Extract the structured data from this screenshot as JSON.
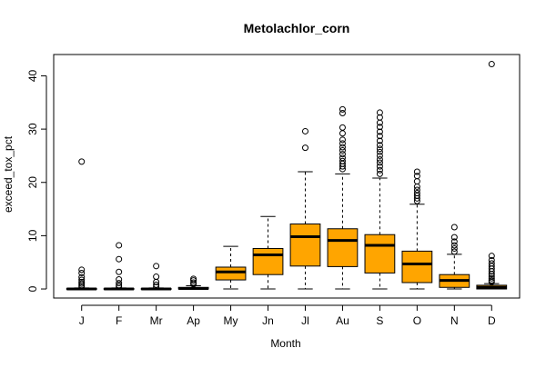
{
  "chart_data": {
    "type": "boxplot",
    "title": "Metolachlor_corn",
    "xlabel": "Month",
    "ylabel": "exceed_tox_pct",
    "ylim": [
      -1.7,
      44
    ],
    "yticks": [
      0,
      10,
      20,
      30,
      40
    ],
    "grid": false,
    "box_color": "#FFA500",
    "categories": [
      "J",
      "F",
      "Mr",
      "Ap",
      "My",
      "Jn",
      "Jl",
      "Au",
      "S",
      "O",
      "N",
      "D"
    ],
    "boxes": [
      {
        "month": "J",
        "lower_whisker": 0,
        "q1": 0,
        "median": 0,
        "q3": 0.1,
        "upper_whisker": 0.2,
        "outliers": [
          0.4,
          0.7,
          1.0,
          1.3,
          1.7,
          2.2,
          3.0,
          3.6,
          23.9
        ]
      },
      {
        "month": "F",
        "lower_whisker": 0,
        "q1": 0,
        "median": 0,
        "q3": 0.1,
        "upper_whisker": 0.2,
        "outliers": [
          0.4,
          0.7,
          1.1,
          1.8,
          3.2,
          5.6,
          8.2
        ]
      },
      {
        "month": "Mr",
        "lower_whisker": 0,
        "q1": 0,
        "median": 0,
        "q3": 0.1,
        "upper_whisker": 0.2,
        "outliers": [
          0.4,
          0.8,
          1.3,
          2.3,
          4.3
        ]
      },
      {
        "month": "Ap",
        "lower_whisker": 0,
        "q1": 0,
        "median": 0.1,
        "q3": 0.3,
        "upper_whisker": 0.6,
        "outliers": [
          0.9,
          1.2,
          1.6,
          1.9
        ]
      },
      {
        "month": "My",
        "lower_whisker": 0,
        "q1": 1.7,
        "median": 3.2,
        "q3": 4.1,
        "upper_whisker": 8.0,
        "outliers": []
      },
      {
        "month": "Jn",
        "lower_whisker": 0,
        "q1": 2.7,
        "median": 6.4,
        "q3": 7.6,
        "upper_whisker": 13.6,
        "outliers": []
      },
      {
        "month": "Jl",
        "lower_whisker": 0,
        "q1": 4.3,
        "median": 9.8,
        "q3": 12.2,
        "upper_whisker": 22.0,
        "outliers": [
          26.5,
          29.6
        ]
      },
      {
        "month": "Au",
        "lower_whisker": 0,
        "q1": 4.2,
        "median": 9.1,
        "q3": 11.3,
        "upper_whisker": 21.6,
        "outliers": [
          22.5,
          23.0,
          23.5,
          24.0,
          24.6,
          25.3,
          26.0,
          26.6,
          27.3,
          28.0,
          29.2,
          30.3,
          33.0,
          33.7
        ]
      },
      {
        "month": "S",
        "lower_whisker": 0,
        "q1": 3.0,
        "median": 8.2,
        "q3": 10.2,
        "upper_whisker": 20.8,
        "outliers": [
          21.6,
          22.3,
          23.0,
          23.7,
          24.3,
          25.0,
          25.7,
          26.3,
          27.0,
          27.8,
          28.7,
          29.5,
          30.4,
          31.2,
          32.2,
          33.1
        ]
      },
      {
        "month": "O",
        "lower_whisker": 0,
        "q1": 1.2,
        "median": 4.7,
        "q3": 7.1,
        "upper_whisker": 15.9,
        "outliers": [
          16.5,
          17.0,
          17.5,
          18.0,
          18.6,
          19.2,
          20.2,
          21.2,
          22.0
        ]
      },
      {
        "month": "N",
        "lower_whisker": 0,
        "q1": 0.3,
        "median": 1.6,
        "q3": 2.7,
        "upper_whisker": 6.5,
        "outliers": [
          7.0,
          7.6,
          8.2,
          8.9,
          9.7,
          11.6
        ]
      },
      {
        "month": "D",
        "lower_whisker": 0,
        "q1": 0,
        "median": 0.3,
        "q3": 0.7,
        "upper_whisker": 1.0,
        "outliers": [
          1.3,
          1.6,
          2.0,
          2.4,
          2.8,
          3.3,
          3.8,
          4.3,
          4.8,
          5.4,
          6.2,
          42.2
        ]
      }
    ]
  }
}
